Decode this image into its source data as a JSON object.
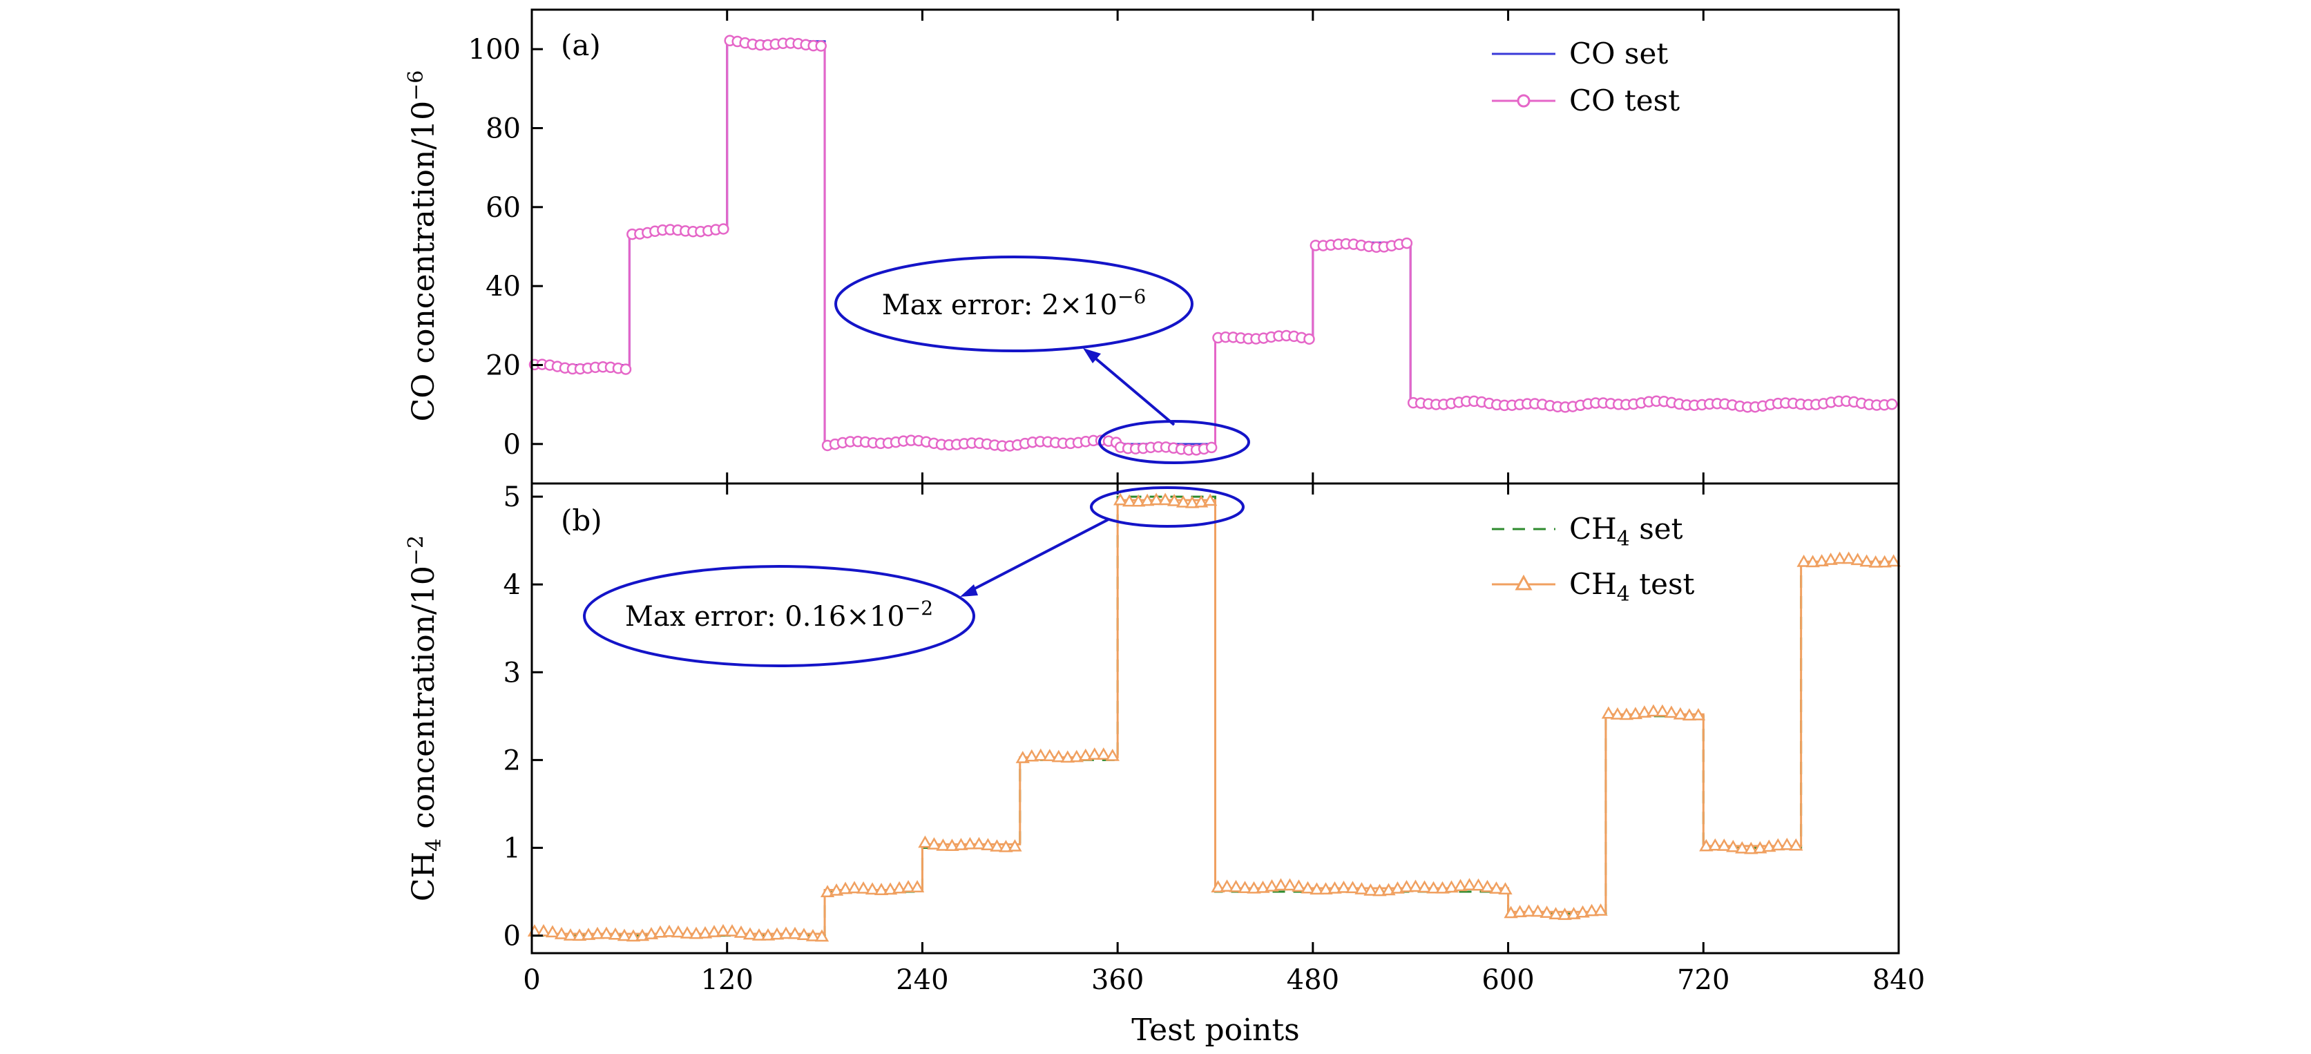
{
  "chart_data": [
    {
      "type": "line",
      "panel_label": "(a)",
      "ylabel": "CO concentration/10",
      "ylabel_sup": "−6",
      "ylim": [
        -10,
        110
      ],
      "xlim": [
        0,
        840
      ],
      "yticks": [
        0,
        20,
        40,
        60,
        80,
        100
      ],
      "legend_position": "top-right",
      "series": [
        {
          "name": "CO set",
          "color": "#3a3ad8",
          "marker": "none",
          "style": "solid",
          "steps": [
            [
              0,
              60,
              20
            ],
            [
              60,
              120,
              54
            ],
            [
              120,
              180,
              102
            ],
            [
              180,
              420,
              0
            ],
            [
              420,
              480,
              27
            ],
            [
              480,
              540,
              51
            ],
            [
              540,
              840,
              10
            ]
          ]
        },
        {
          "name": "CO test",
          "color": "#e566c8",
          "marker": "circle",
          "style": "solid",
          "steps": [
            [
              0,
              60,
              19.5
            ],
            [
              60,
              120,
              53.8
            ],
            [
              120,
              180,
              101.5
            ],
            [
              180,
              360,
              0.2
            ],
            [
              360,
              420,
              -0.8
            ],
            [
              420,
              480,
              26.7
            ],
            [
              480,
              540,
              50.6
            ],
            [
              540,
              840,
              10.1
            ]
          ]
        }
      ],
      "annotation": {
        "text": "Max error: 2×10",
        "sup": "−6"
      }
    },
    {
      "type": "line",
      "panel_label": "(b)",
      "ylabel": "CH",
      "ylabel_sub": "4",
      "ylabel_rest": " concentration/10",
      "ylabel_sup": "−2",
      "ylim": [
        -0.2,
        5.15
      ],
      "xlim": [
        0,
        840
      ],
      "yticks": [
        0,
        1,
        2,
        3,
        4,
        5
      ],
      "xticks": [
        0,
        120,
        240,
        360,
        480,
        600,
        720,
        840
      ],
      "xlabel": "Test points",
      "legend_position": "top-right",
      "series": [
        {
          "name": "CH",
          "name_sub": "4",
          "name_rest": " set",
          "color": "#2e8b2e",
          "marker": "none",
          "style": "dashed",
          "steps": [
            [
              0,
              180,
              0
            ],
            [
              180,
              240,
              0.5
            ],
            [
              240,
              300,
              1
            ],
            [
              300,
              360,
              2
            ],
            [
              360,
              420,
              5
            ],
            [
              420,
              600,
              0.5
            ],
            [
              600,
              660,
              0.25
            ],
            [
              660,
              720,
              2.5
            ],
            [
              720,
              780,
              1
            ],
            [
              780,
              840,
              4.25
            ]
          ]
        },
        {
          "name": "CH",
          "name_sub": "4",
          "name_rest": " test",
          "color": "#f0a060",
          "marker": "triangle",
          "style": "solid",
          "steps": [
            [
              0,
              180,
              0.02
            ],
            [
              180,
              240,
              0.52
            ],
            [
              240,
              300,
              1.04
            ],
            [
              300,
              360,
              2.03
            ],
            [
              360,
              420,
              4.96
            ],
            [
              420,
              600,
              0.54
            ],
            [
              600,
              660,
              0.27
            ],
            [
              660,
              720,
              2.52
            ],
            [
              720,
              780,
              1.02
            ],
            [
              780,
              840,
              4.26
            ]
          ]
        }
      ],
      "annotation": {
        "text": "Max error: 0.16×10",
        "sup": "−2"
      }
    }
  ]
}
